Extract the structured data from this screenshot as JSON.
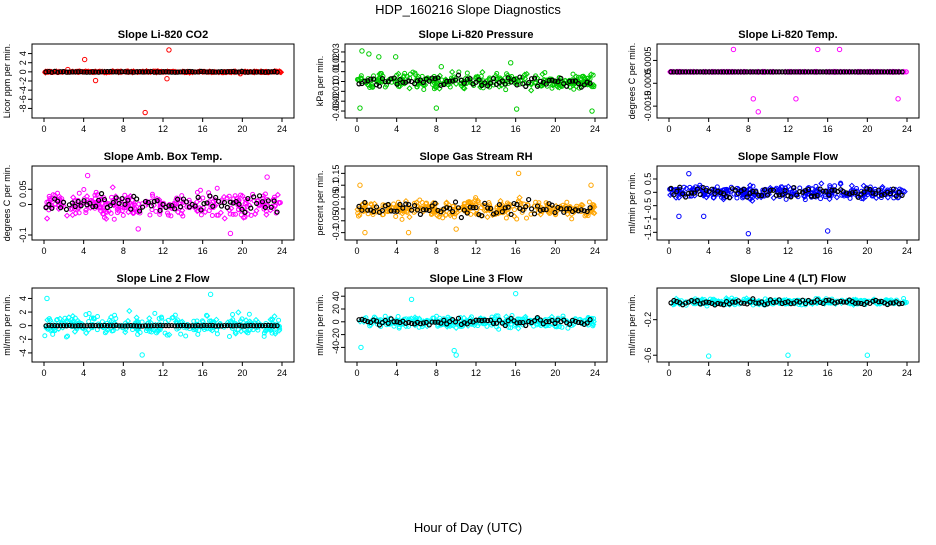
{
  "page": {
    "title": "HDP_160216  Slope Diagnostics",
    "xlabel": "Hour of Day (UTC)"
  },
  "chart_data": [
    {
      "type": "scatter",
      "title": "Slope Li-820 CO2",
      "ylabel": "Licor ppm per min.",
      "color": "#ff0000",
      "x_ticks": [
        0,
        4,
        8,
        12,
        16,
        20,
        24
      ],
      "x_range": [
        0,
        24
      ],
      "y_ticks": [
        -8,
        -6,
        -4,
        -2,
        0,
        2,
        4
      ],
      "y_range": [
        -9,
        5
      ],
      "noise": 0.15,
      "black_noise": 0.1,
      "outliers": [
        [
          4.1,
          2.7
        ],
        [
          5.2,
          -1.9
        ],
        [
          10.2,
          -8.9
        ],
        [
          12.6,
          4.8
        ],
        [
          12.4,
          -1.5
        ],
        [
          2.4,
          0.5
        ],
        [
          19.8,
          -0.4
        ]
      ]
    },
    {
      "type": "scatter",
      "title": "Slope Li-820 Pressure",
      "ylabel": "kPa per min.",
      "color": "#00cc00",
      "x_ticks": [
        0,
        4,
        8,
        12,
        16,
        20,
        24
      ],
      "x_range": [
        0,
        24
      ],
      "y_ticks": [
        -0.03,
        -0.02,
        -0.01,
        0.0,
        0.01,
        0.02,
        0.03
      ],
      "y_range": [
        -0.032,
        0.033
      ],
      "noise": 0.008,
      "black_noise": 0.006,
      "outliers": [
        [
          0.5,
          0.031
        ],
        [
          1.2,
          0.028
        ],
        [
          2.2,
          0.025
        ],
        [
          0.3,
          -0.027
        ],
        [
          8.0,
          -0.027
        ],
        [
          15.5,
          0.019
        ],
        [
          16.1,
          -0.028
        ],
        [
          23.7,
          -0.03
        ],
        [
          3.9,
          0.025
        ],
        [
          8.5,
          0.015
        ]
      ]
    },
    {
      "type": "scatter",
      "title": "Slope Li-820 Temp.",
      "ylabel": "degrees C per min.",
      "color": "#ff00ff",
      "x_ticks": [
        0,
        4,
        8,
        12,
        16,
        20,
        24
      ],
      "x_range": [
        0,
        24
      ],
      "y_ticks": [
        -0.0015,
        -0.0005,
        0.0005
      ],
      "y_range": [
        -0.0018,
        0.001
      ],
      "noise": 0.0,
      "black_noise": 0.0,
      "outliers": [
        [
          6.5,
          0.00098
        ],
        [
          15.0,
          0.00098
        ],
        [
          17.2,
          0.00098
        ],
        [
          8.5,
          -0.00118
        ],
        [
          12.8,
          -0.00118
        ],
        [
          23.1,
          -0.00118
        ],
        [
          9.0,
          -0.00175
        ],
        [
          0.2,
          0.0
        ]
      ]
    },
    {
      "type": "scatter",
      "title": "Slope Amb. Box Temp.",
      "ylabel": "degrees C per min.",
      "color": "#ff00ff",
      "x_ticks": [
        0,
        4,
        8,
        12,
        16,
        20,
        24
      ],
      "x_range": [
        0,
        24
      ],
      "y_ticks": [
        -0.1,
        0.0,
        0.05
      ],
      "y_range": [
        -0.1,
        0.11
      ],
      "noise": 0.04,
      "black_noise": 0.03,
      "outliers": [
        [
          18.8,
          -0.095
        ],
        [
          4.4,
          0.095
        ],
        [
          9.5,
          -0.08
        ],
        [
          22.5,
          0.09
        ]
      ]
    },
    {
      "type": "scatter",
      "title": "Slope Gas Stream RH",
      "ylabel": "percent per min.",
      "color": "#ffa500",
      "x_ticks": [
        0,
        4,
        8,
        12,
        16,
        20,
        24
      ],
      "x_range": [
        0,
        24
      ],
      "y_ticks": [
        -0.1,
        -0.05,
        0.0,
        0.05,
        0.1,
        0.15
      ],
      "y_range": [
        -0.11,
        0.16
      ],
      "noise": 0.035,
      "black_noise": 0.03,
      "outliers": [
        [
          16.3,
          0.15
        ],
        [
          5.2,
          -0.1
        ],
        [
          10.0,
          -0.085
        ],
        [
          0.3,
          0.1
        ],
        [
          23.6,
          0.1
        ],
        [
          0.8,
          -0.1
        ]
      ]
    },
    {
      "type": "scatter",
      "title": "Slope Sample Flow",
      "ylabel": "ml/min per min.",
      "color": "#0000ff",
      "x_ticks": [
        0,
        4,
        8,
        12,
        16,
        20,
        24
      ],
      "x_range": [
        0,
        24
      ],
      "y_ticks": [
        -1.5,
        -1.0,
        -0.5,
        0.0,
        0.5
      ],
      "y_range": [
        -1.6,
        0.8
      ],
      "noise": 0.25,
      "black_noise": 0.2,
      "outliers": [
        [
          8.0,
          -1.55
        ],
        [
          16.0,
          -1.45
        ],
        [
          2.0,
          0.7
        ],
        [
          1.0,
          -0.9
        ],
        [
          3.5,
          -0.9
        ]
      ]
    },
    {
      "type": "scatter",
      "title": "Slope Line 2 Flow",
      "ylabel": "ml/min per min.",
      "color": "#00ffff",
      "x_ticks": [
        0,
        4,
        8,
        12,
        16,
        20,
        24
      ],
      "x_range": [
        0,
        24
      ],
      "y_ticks": [
        -4,
        -2,
        0,
        2,
        4
      ],
      "y_range": [
        -4.6,
        4.8
      ],
      "noise": 1.5,
      "black_noise": 0.05,
      "outliers": [
        [
          16.8,
          4.6
        ],
        [
          9.9,
          -4.3
        ],
        [
          0.3,
          4.0
        ]
      ]
    },
    {
      "type": "scatter",
      "title": "Slope Line 3 Flow",
      "ylabel": "ml/min per min.",
      "color": "#00ffff",
      "x_ticks": [
        0,
        4,
        8,
        12,
        16,
        20,
        24
      ],
      "x_range": [
        0,
        24
      ],
      "y_ticks": [
        -40,
        -20,
        0,
        20,
        40
      ],
      "y_range": [
        -55,
        45
      ],
      "noise": 9,
      "black_noise": 6,
      "outliers": [
        [
          9.8,
          -45
        ],
        [
          10.0,
          -52
        ],
        [
          16.0,
          44
        ],
        [
          5.5,
          35
        ],
        [
          0.4,
          -40
        ]
      ]
    },
    {
      "type": "scatter",
      "title": "Slope Line 4 (LT) Flow",
      "ylabel": "ml/min per min.",
      "color": "#00ffff",
      "x_ticks": [
        0,
        4,
        8,
        12,
        16,
        20,
        24
      ],
      "x_range": [
        0,
        24
      ],
      "y_ticks": [
        -0.6,
        -0.2
      ],
      "y_range": [
        -0.62,
        0.1
      ],
      "noise": 0.035,
      "black_noise": 0.03,
      "outliers": [
        [
          4.0,
          -0.61
        ],
        [
          12.0,
          -0.6
        ],
        [
          20.0,
          -0.6
        ]
      ]
    }
  ]
}
